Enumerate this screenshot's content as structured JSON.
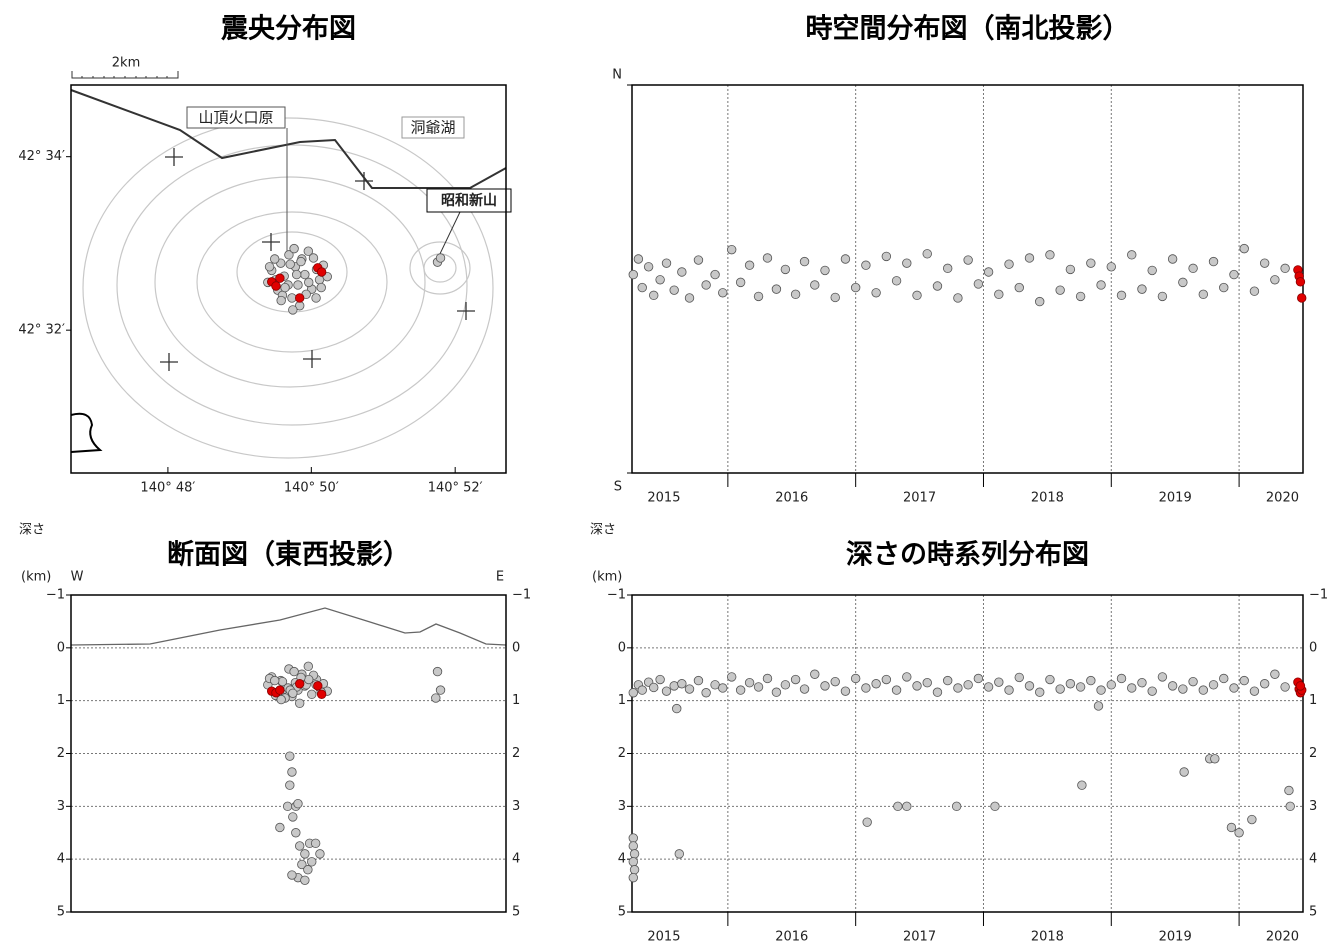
{
  "chart_data": [
    {
      "type": "scatter",
      "title": "震央分布図",
      "xlim": [
        140.7775,
        140.8785
      ],
      "ylim": [
        42.5058,
        42.5805
      ],
      "xticks": [
        {
          "value": 140.8,
          "label": "140° 48′"
        },
        {
          "value": 140.8333,
          "label": "140° 50′"
        },
        {
          "value": 140.8667,
          "label": "140° 52′"
        }
      ],
      "yticks": [
        {
          "value": 42.5667,
          "label": "42° 34′"
        },
        {
          "value": 42.5333,
          "label": "42° 32′"
        }
      ],
      "annotations": [
        "2km",
        "山頂火口原",
        "洞爺湖",
        "昭和新山"
      ],
      "series": [
        {
          "color": "#c8c8c8",
          "x": [
            140.8232,
            140.8241,
            140.8255,
            140.8262,
            140.827,
            140.8281,
            140.8288,
            140.8296,
            140.8302,
            140.8311,
            140.8318,
            140.8326,
            140.8334,
            140.8345,
            140.8352,
            140.8361,
            140.837,
            140.8236,
            140.825,
            140.8266,
            140.8279,
            140.8293,
            140.8306,
            140.8321,
            140.8338,
            140.8356,
            140.8248,
            140.8272,
            140.8299,
            140.8327,
            140.8284,
            140.8309,
            140.8263,
            140.8344,
            140.829,
            140.8626,
            140.8633
          ],
          "values": [
            42.5425,
            42.5448,
            42.541,
            42.5462,
            42.5437,
            42.5478,
            42.5395,
            42.5455,
            42.542,
            42.547,
            42.544,
            42.5485,
            42.5412,
            42.545,
            42.543,
            42.5458,
            42.5436,
            42.5455,
            42.543,
            42.54,
            42.542,
            42.549,
            42.538,
            42.5402,
            42.5472,
            42.5415,
            42.547,
            42.5415,
            42.544,
            42.5425,
            42.546,
            42.5465,
            42.539,
            42.5395,
            42.5372,
            42.5464,
            42.5472
          ]
        },
        {
          "color": "#e00000",
          "x": [
            140.8241,
            140.826,
            140.8251,
            140.8306,
            140.8348,
            140.8357
          ],
          "values": [
            42.5426,
            42.5433,
            42.5418,
            42.5395,
            42.5453,
            42.5445
          ]
        }
      ]
    },
    {
      "type": "scatter",
      "title": "時空間分布図（南北投影）",
      "xlim": [
        2015.25,
        2020.5
      ],
      "ylim": [
        42.5058,
        42.5805
      ],
      "xticks": [
        {
          "value": 2015.5,
          "label": "2015"
        },
        {
          "value": 2016.5,
          "label": "2016"
        },
        {
          "value": 2017.5,
          "label": "2017"
        },
        {
          "value": 2018.5,
          "label": "2018"
        },
        {
          "value": 2019.5,
          "label": "2019"
        },
        {
          "value": 2020.5,
          "label": "2020"
        }
      ],
      "xgrid": [
        2016,
        2017,
        2018,
        2019,
        2020
      ],
      "yticks": [
        {
          "value": 42.5805,
          "label": "N"
        },
        {
          "value": 42.5058,
          "label": "S"
        }
      ],
      "series": [
        {
          "color": "#c8c8c8",
          "x": [
            2015.26,
            2015.3,
            2015.33,
            2015.38,
            2015.42,
            2015.47,
            2015.52,
            2015.58,
            2015.64,
            2015.7,
            2015.77,
            2015.83,
            2015.9,
            2015.96,
            2016.03,
            2016.1,
            2016.17,
            2016.24,
            2016.31,
            2016.38,
            2016.45,
            2016.53,
            2016.6,
            2016.68,
            2016.76,
            2016.84,
            2016.92,
            2017.0,
            2017.08,
            2017.16,
            2017.24,
            2017.32,
            2017.4,
            2017.48,
            2017.56,
            2017.64,
            2017.72,
            2017.8,
            2017.88,
            2017.96,
            2018.04,
            2018.12,
            2018.2,
            2018.28,
            2018.36,
            2018.44,
            2018.52,
            2018.6,
            2018.68,
            2018.76,
            2018.84,
            2018.92,
            2019.0,
            2019.08,
            2019.16,
            2019.24,
            2019.32,
            2019.4,
            2019.48,
            2019.56,
            2019.64,
            2019.72,
            2019.8,
            2019.88,
            2019.96,
            2020.04,
            2020.12,
            2020.2,
            2020.28,
            2020.36
          ],
          "values": [
            42.544,
            42.547,
            42.5415,
            42.5455,
            42.54,
            42.543,
            42.5462,
            42.541,
            42.5445,
            42.5395,
            42.5468,
            42.542,
            42.544,
            42.5405,
            42.5488,
            42.5425,
            42.5458,
            42.5398,
            42.5472,
            42.5412,
            42.545,
            42.5402,
            42.5465,
            42.542,
            42.5448,
            42.5396,
            42.547,
            42.5415,
            42.5458,
            42.5405,
            42.5475,
            42.5428,
            42.5462,
            42.54,
            42.548,
            42.5418,
            42.5452,
            42.5395,
            42.5468,
            42.5422,
            42.5445,
            42.5402,
            42.546,
            42.5415,
            42.5472,
            42.5388,
            42.5478,
            42.541,
            42.545,
            42.5398,
            42.5462,
            42.542,
            42.5455,
            42.54,
            42.5478,
            42.5412,
            42.5448,
            42.5398,
            42.547,
            42.5425,
            42.5452,
            42.5402,
            42.5465,
            42.5415,
            42.544,
            42.549,
            42.5408,
            42.5462,
            42.543,
            42.5452
          ]
        },
        {
          "color": "#e00000",
          "x": [
            2020.46,
            2020.47,
            2020.48,
            2020.49
          ],
          "values": [
            42.5449,
            42.5437,
            42.5426,
            42.5395
          ]
        }
      ]
    },
    {
      "type": "scatter",
      "title": "断面図（東西投影）",
      "y_label": "深さ",
      "y_unit": "(km)",
      "left_label": "W",
      "right_label": "E",
      "xlim": [
        140.7775,
        140.8785
      ],
      "ylim": [
        -1,
        5
      ],
      "y_inverted": true,
      "right_ticks": true,
      "yticks": [
        {
          "value": -1,
          "label": "−1"
        },
        0,
        1,
        2,
        3,
        4,
        5
      ],
      "series": [
        {
          "color": "#c8c8c8",
          "x": [
            140.8232,
            140.8241,
            140.8255,
            140.8262,
            140.827,
            140.8281,
            140.8288,
            140.8296,
            140.8302,
            140.8311,
            140.8318,
            140.8326,
            140.8334,
            140.8345,
            140.8352,
            140.8361,
            140.837,
            140.8236,
            140.825,
            140.8266,
            140.8279,
            140.8293,
            140.8306,
            140.8321,
            140.8338,
            140.8356,
            140.8248,
            140.8272,
            140.8299,
            140.8327,
            140.8284,
            140.8309,
            140.8263,
            140.8344,
            140.829,
            140.8283,
            140.8288,
            140.8283,
            140.8278,
            140.8297,
            140.8302,
            140.826,
            140.829,
            140.8297,
            140.8306,
            140.8318,
            140.8329,
            140.8343,
            140.8353,
            140.8311,
            140.8325,
            140.8302,
            140.8318,
            140.8334,
            140.8288,
            140.8626,
            140.8633,
            140.8622
          ],
          "values": [
            0.7,
            0.55,
            0.85,
            0.62,
            0.78,
            0.4,
            0.92,
            0.66,
            0.8,
            0.5,
            0.72,
            0.35,
            0.88,
            0.6,
            0.75,
            0.68,
            0.82,
            0.58,
            0.9,
            0.64,
            0.76,
            0.45,
            1.05,
            0.7,
            0.52,
            0.84,
            0.62,
            0.95,
            0.74,
            0.6,
            0.8,
            0.56,
            0.98,
            0.7,
            0.86,
            2.05,
            2.35,
            2.6,
            3.0,
            3.0,
            2.95,
            3.4,
            3.2,
            3.5,
            3.75,
            3.9,
            3.7,
            3.7,
            3.9,
            4.1,
            4.2,
            4.35,
            4.4,
            4.05,
            4.3,
            0.45,
            0.8,
            0.95
          ]
        },
        {
          "color": "#e00000",
          "x": [
            140.8241,
            140.8251,
            140.826,
            140.8306,
            140.8348,
            140.8357
          ],
          "values": [
            0.82,
            0.85,
            0.8,
            0.68,
            0.72,
            0.88
          ]
        }
      ]
    },
    {
      "type": "scatter",
      "title": "深さの時系列分布図",
      "y_label": "深さ",
      "y_unit": "(km)",
      "xlim": [
        2015.25,
        2020.5
      ],
      "ylim": [
        -1,
        5
      ],
      "y_inverted": true,
      "right_ticks": true,
      "xticks": [
        {
          "value": 2015.5,
          "label": "2015"
        },
        {
          "value": 2016.5,
          "label": "2016"
        },
        {
          "value": 2017.5,
          "label": "2017"
        },
        {
          "value": 2018.5,
          "label": "2018"
        },
        {
          "value": 2019.5,
          "label": "2019"
        },
        {
          "value": 2020.5,
          "label": "2020"
        }
      ],
      "xgrid": [
        2016,
        2017,
        2018,
        2019,
        2020
      ],
      "yticks": [
        {
          "value": -1,
          "label": "−1"
        },
        0,
        1,
        2,
        3,
        4,
        5
      ],
      "series": [
        {
          "color": "#c8c8c8",
          "x": [
            2015.26,
            2015.3,
            2015.33,
            2015.38,
            2015.42,
            2015.47,
            2015.52,
            2015.58,
            2015.64,
            2015.7,
            2015.77,
            2015.83,
            2015.9,
            2015.96,
            2016.03,
            2016.1,
            2016.17,
            2016.24,
            2016.31,
            2016.38,
            2016.45,
            2016.53,
            2016.6,
            2016.68,
            2016.76,
            2016.84,
            2016.92,
            2017.0,
            2017.08,
            2017.16,
            2017.24,
            2017.32,
            2017.4,
            2017.48,
            2017.56,
            2017.64,
            2017.72,
            2017.8,
            2017.88,
            2017.96,
            2018.04,
            2018.12,
            2018.2,
            2018.28,
            2018.36,
            2018.44,
            2018.52,
            2018.6,
            2018.68,
            2018.76,
            2018.84,
            2018.92,
            2019.0,
            2019.08,
            2019.16,
            2019.24,
            2019.32,
            2019.4,
            2019.48,
            2019.56,
            2019.64,
            2019.72,
            2019.8,
            2019.88,
            2019.96,
            2020.04,
            2020.12,
            2020.2,
            2020.28,
            2020.36,
            2015.26,
            2015.26,
            2015.27,
            2015.26,
            2015.27,
            2015.26,
            2015.6,
            2015.62,
            2017.09,
            2017.33,
            2017.4,
            2017.79,
            2018.09,
            2018.77,
            2018.9,
            2019.57,
            2019.77,
            2019.81,
            2019.94,
            2020.0,
            2020.1,
            2020.39,
            2020.4
          ],
          "values": [
            0.85,
            0.7,
            0.8,
            0.65,
            0.75,
            0.6,
            0.82,
            0.72,
            0.68,
            0.78,
            0.62,
            0.85,
            0.7,
            0.76,
            0.55,
            0.8,
            0.66,
            0.74,
            0.58,
            0.84,
            0.7,
            0.6,
            0.78,
            0.5,
            0.72,
            0.64,
            0.82,
            0.58,
            0.76,
            0.68,
            0.6,
            0.8,
            0.55,
            0.72,
            0.66,
            0.84,
            0.62,
            0.76,
            0.7,
            0.58,
            0.74,
            0.65,
            0.8,
            0.56,
            0.72,
            0.84,
            0.6,
            0.78,
            0.68,
            0.74,
            0.62,
            0.8,
            0.7,
            0.58,
            0.76,
            0.66,
            0.82,
            0.55,
            0.72,
            0.78,
            0.64,
            0.8,
            0.7,
            0.58,
            0.76,
            0.62,
            0.82,
            0.68,
            0.5,
            0.74,
            3.6,
            3.75,
            3.9,
            4.05,
            4.2,
            4.35,
            1.15,
            3.9,
            3.3,
            3.0,
            3.0,
            3.0,
            3.0,
            2.6,
            1.1,
            2.35,
            2.1,
            2.1,
            3.4,
            3.5,
            3.25,
            2.7,
            3.0
          ]
        },
        {
          "color": "#e00000",
          "x": [
            2020.46,
            2020.47,
            2020.48,
            2020.49,
            2020.48
          ],
          "values": [
            0.65,
            0.78,
            0.85,
            0.8,
            0.72
          ]
        }
      ]
    }
  ]
}
